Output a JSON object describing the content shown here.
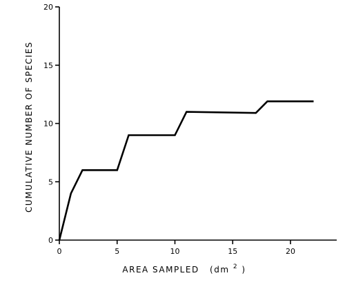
{
  "chart_data": {
    "type": "line",
    "xlabel": "AREA SAMPLED",
    "xlabel_unit_prefix": "(dm",
    "xlabel_unit_sup": "2",
    "xlabel_unit_suffix": ")",
    "ylabel": "CUMULATIVE NUMBER OF SPECIES",
    "xlim": [
      0,
      24
    ],
    "ylim": [
      0,
      20
    ],
    "x_ticks": [
      0,
      5,
      10,
      15,
      20
    ],
    "y_ticks": [
      0,
      5,
      10,
      15,
      20
    ],
    "grid": false,
    "series": [
      {
        "x": [
          0,
          1,
          2,
          5,
          6,
          10,
          11,
          17,
          18,
          22
        ],
        "y": [
          0,
          4,
          6,
          6,
          9,
          9,
          11,
          10.9,
          11.9,
          11.9
        ]
      }
    ]
  }
}
